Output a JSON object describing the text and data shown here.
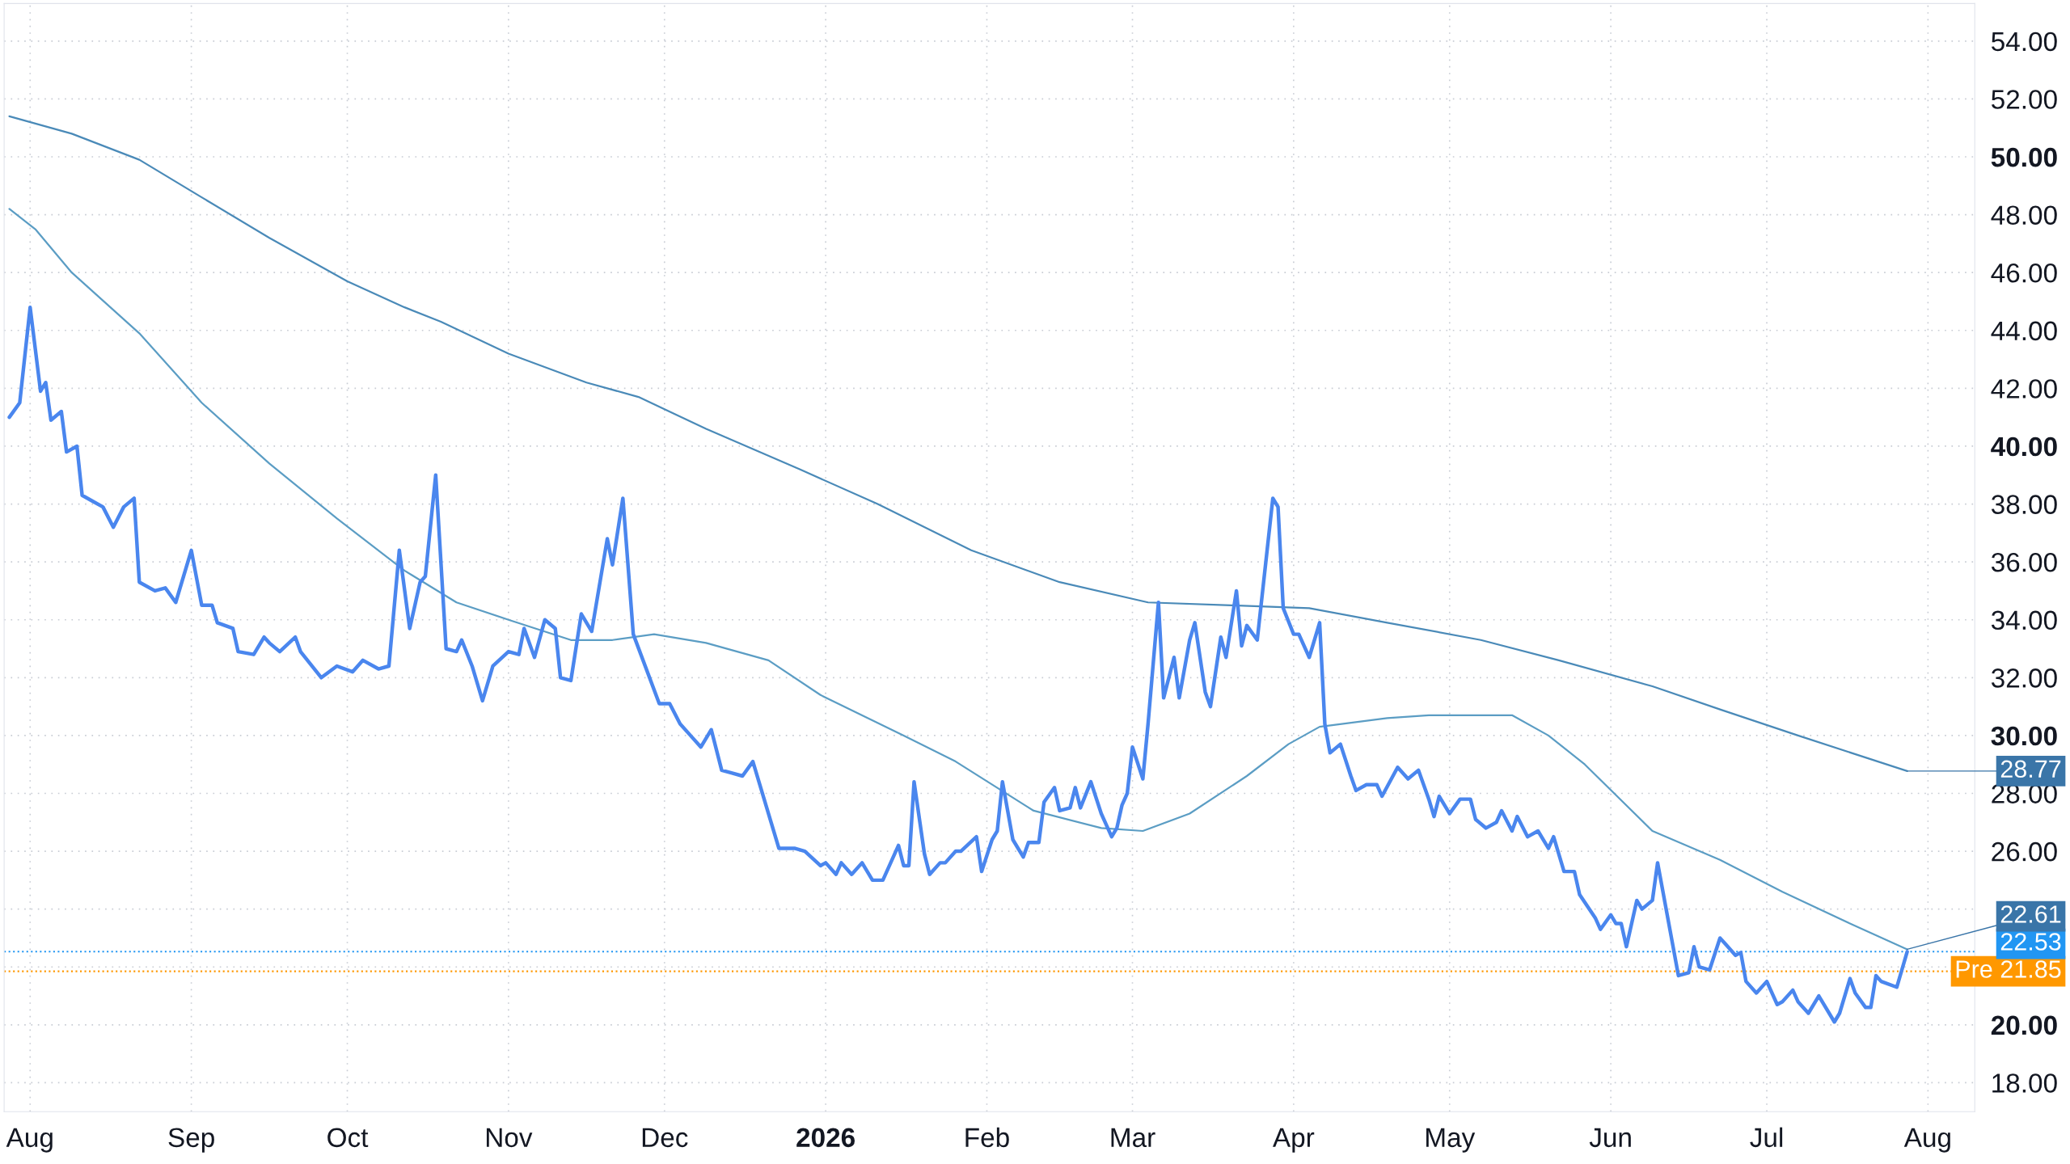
{
  "chart_data": {
    "type": "line",
    "xlim": [
      "2025-07-27",
      "2026-08-10"
    ],
    "ylim": [
      17.0,
      55.3
    ],
    "xticks": [
      {
        "value": "2025-08-01",
        "label": "Aug"
      },
      {
        "value": "2025-09-01",
        "label": "Sep"
      },
      {
        "value": "2025-10-01",
        "label": "Oct"
      },
      {
        "value": "2025-11-01",
        "label": "Nov"
      },
      {
        "value": "2025-12-01",
        "label": "Dec"
      },
      {
        "value": "2026-01-01",
        "label": "2026"
      },
      {
        "value": "2026-02-01",
        "label": "Feb"
      },
      {
        "value": "2026-03-01",
        "label": "Mar"
      },
      {
        "value": "2026-04-01",
        "label": "Apr"
      },
      {
        "value": "2026-05-01",
        "label": "May"
      },
      {
        "value": "2026-06-01",
        "label": "Jun"
      },
      {
        "value": "2026-07-01",
        "label": "Jul"
      },
      {
        "value": "2026-08-01",
        "label": "Aug"
      }
    ],
    "yticks": [
      {
        "value": 18,
        "label": "18.00"
      },
      {
        "value": 20,
        "label": "20.00"
      },
      {
        "value": 22,
        "label": null
      },
      {
        "value": 24,
        "label": null
      },
      {
        "value": 26,
        "label": "26.00"
      },
      {
        "value": 28,
        "label": "28.00"
      },
      {
        "value": 30,
        "label": "30.00"
      },
      {
        "value": 32,
        "label": "32.00"
      },
      {
        "value": 34,
        "label": "34.00"
      },
      {
        "value": 36,
        "label": "36.00"
      },
      {
        "value": 38,
        "label": "38.00"
      },
      {
        "value": 40,
        "label": "40.00"
      },
      {
        "value": 42,
        "label": "42.00"
      },
      {
        "value": 44,
        "label": "44.00"
      },
      {
        "value": 46,
        "label": "46.00"
      },
      {
        "value": 48,
        "label": "48.00"
      },
      {
        "value": 50,
        "label": "50.00"
      },
      {
        "value": 52,
        "label": "52.00"
      },
      {
        "value": 54,
        "label": "54.00"
      }
    ],
    "grid": true,
    "series": [
      {
        "color": "#4a86ee",
        "x": [
          "2025-07-28",
          "2025-07-30",
          "2025-08-01",
          "2025-08-03",
          "2025-08-04",
          "2025-08-05",
          "2025-08-07",
          "2025-08-08",
          "2025-08-10",
          "2025-08-11",
          "2025-08-13",
          "2025-08-15",
          "2025-08-17",
          "2025-08-19",
          "2025-08-21",
          "2025-08-22",
          "2025-08-25",
          "2025-08-27",
          "2025-08-29",
          "2025-09-01",
          "2025-09-03",
          "2025-09-05",
          "2025-09-06",
          "2025-09-09",
          "2025-09-10",
          "2025-09-13",
          "2025-09-15",
          "2025-09-16",
          "2025-09-18",
          "2025-09-21",
          "2025-09-22",
          "2025-09-26",
          "2025-09-29",
          "2025-10-02",
          "2025-10-04",
          "2025-10-07",
          "2025-10-09",
          "2025-10-11",
          "2025-10-13",
          "2025-10-15",
          "2025-10-16",
          "2025-10-18",
          "2025-10-20",
          "2025-10-22",
          "2025-10-23",
          "2025-10-25",
          "2025-10-27",
          "2025-10-29",
          "2025-11-01",
          "2025-11-03",
          "2025-11-04",
          "2025-11-06",
          "2025-11-08",
          "2025-11-10",
          "2025-11-11",
          "2025-11-13",
          "2025-11-15",
          "2025-11-17",
          "2025-11-20",
          "2025-11-21",
          "2025-11-23",
          "2025-11-25",
          "2025-11-30",
          "2025-12-02",
          "2025-12-04",
          "2025-12-06",
          "2025-12-08",
          "2025-12-10",
          "2025-12-12",
          "2025-12-14",
          "2025-12-16",
          "2025-12-18",
          "2025-12-23",
          "2025-12-26",
          "2025-12-28",
          "2025-12-31",
          "2026-01-01",
          "2026-01-03",
          "2026-01-04",
          "2026-01-06",
          "2026-01-08",
          "2026-01-10",
          "2026-01-12",
          "2026-01-15",
          "2026-01-16",
          "2026-01-17",
          "2026-01-18",
          "2026-01-20",
          "2026-01-21",
          "2026-01-23",
          "2026-01-24",
          "2026-01-26",
          "2026-01-27",
          "2026-01-30",
          "2026-01-31",
          "2026-02-02",
          "2026-02-03",
          "2026-02-04",
          "2026-02-06",
          "2026-02-08",
          "2026-02-09",
          "2026-02-11",
          "2026-02-12",
          "2026-02-14",
          "2026-02-15",
          "2026-02-17",
          "2026-02-18",
          "2026-02-19",
          "2026-02-21",
          "2026-02-23",
          "2026-02-25",
          "2026-02-26",
          "2026-02-27",
          "2026-02-28",
          "2026-03-01",
          "2026-03-03",
          "2026-03-04",
          "2026-03-06",
          "2026-03-07",
          "2026-03-09",
          "2026-03-10",
          "2026-03-12",
          "2026-03-13",
          "2026-03-15",
          "2026-03-16",
          "2026-03-18",
          "2026-03-19",
          "2026-03-21",
          "2026-03-22",
          "2026-03-23",
          "2026-03-25",
          "2026-03-28",
          "2026-03-29",
          "2026-03-30",
          "2026-04-01",
          "2026-04-02",
          "2026-04-04",
          "2026-04-06",
          "2026-04-07",
          "2026-04-08",
          "2026-04-10",
          "2026-04-12",
          "2026-04-13",
          "2026-04-15",
          "2026-04-17",
          "2026-04-18",
          "2026-04-21",
          "2026-04-23",
          "2026-04-25",
          "2026-04-27",
          "2026-04-28",
          "2026-04-29",
          "2026-05-01",
          "2026-05-03",
          "2026-05-05",
          "2026-05-06",
          "2026-05-08",
          "2026-05-10",
          "2026-05-11",
          "2026-05-13",
          "2026-05-14",
          "2026-05-16",
          "2026-05-18",
          "2026-05-20",
          "2026-05-21",
          "2026-05-23",
          "2026-05-25",
          "2026-05-26",
          "2026-05-29",
          "2026-05-30",
          "2026-06-01",
          "2026-06-02",
          "2026-06-03",
          "2026-06-04",
          "2026-06-06",
          "2026-06-07",
          "2026-06-09",
          "2026-06-10",
          "2026-06-14",
          "2026-06-16",
          "2026-06-17",
          "2026-06-18",
          "2026-06-20",
          "2026-06-22",
          "2026-06-23",
          "2026-06-25",
          "2026-06-26",
          "2026-06-27",
          "2026-06-29",
          "2026-07-01",
          "2026-07-03",
          "2026-07-04",
          "2026-07-06",
          "2026-07-07",
          "2026-07-09",
          "2026-07-11",
          "2026-07-14",
          "2026-07-15",
          "2026-07-17",
          "2026-07-18",
          "2026-07-20",
          "2026-07-21",
          "2026-07-22",
          "2026-07-23",
          "2026-07-26",
          "2026-07-28"
        ],
        "values": [
          41.0,
          41.5,
          44.8,
          41.9,
          42.2,
          40.9,
          41.2,
          39.8,
          40.0,
          38.3,
          38.1,
          37.9,
          37.2,
          37.9,
          38.2,
          35.3,
          35.0,
          35.1,
          34.6,
          36.4,
          34.5,
          34.5,
          33.9,
          33.7,
          32.9,
          32.8,
          33.4,
          33.2,
          32.9,
          33.4,
          32.9,
          32.0,
          32.4,
          32.2,
          32.6,
          32.3,
          32.4,
          36.4,
          33.7,
          35.3,
          35.5,
          39.0,
          33.0,
          32.9,
          33.3,
          32.4,
          31.2,
          32.4,
          32.9,
          32.8,
          33.7,
          32.7,
          34.0,
          33.7,
          32.0,
          31.9,
          34.2,
          33.6,
          36.8,
          35.9,
          38.2,
          33.5,
          31.1,
          31.1,
          30.4,
          30.0,
          29.6,
          30.2,
          28.8,
          28.7,
          28.6,
          29.1,
          26.1,
          26.1,
          26.0,
          25.5,
          25.6,
          25.2,
          25.6,
          25.2,
          25.6,
          25.0,
          25.0,
          26.2,
          25.5,
          25.5,
          28.4,
          25.9,
          25.2,
          25.6,
          25.6,
          26.0,
          26.0,
          26.5,
          25.3,
          26.4,
          26.7,
          28.4,
          26.4,
          25.8,
          26.3,
          26.3,
          27.7,
          28.2,
          27.4,
          27.5,
          28.2,
          27.5,
          28.4,
          27.3,
          26.5,
          26.8,
          27.6,
          28.0,
          29.6,
          28.5,
          30.4,
          34.6,
          31.3,
          32.7,
          31.3,
          33.3,
          33.9,
          31.5,
          31.0,
          33.4,
          32.7,
          35.0,
          33.1,
          33.8,
          33.3,
          38.2,
          37.9,
          34.4,
          33.5,
          33.5,
          32.7,
          33.9,
          30.4,
          29.4,
          29.7,
          28.6,
          28.1,
          28.3,
          28.3,
          27.9,
          28.9,
          28.5,
          28.8,
          27.8,
          27.2,
          27.9,
          27.3,
          27.8,
          27.8,
          27.1,
          26.8,
          27.0,
          27.4,
          26.7,
          27.2,
          26.5,
          26.7,
          26.1,
          26.5,
          25.3,
          25.3,
          24.5,
          23.7,
          23.3,
          23.8,
          23.5,
          23.5,
          22.7,
          24.3,
          24.0,
          24.3,
          25.6,
          21.7,
          21.8,
          22.7,
          22.0,
          21.9,
          23.0,
          22.8,
          22.4,
          22.5,
          21.5,
          21.1,
          21.5,
          20.7,
          20.8,
          21.2,
          20.8,
          20.4,
          21.0,
          20.1,
          20.4,
          21.6,
          21.1,
          20.6,
          20.6,
          21.7,
          21.5,
          21.3,
          22.53
        ]
      },
      {
        "color": "#4a8ab8",
        "x": [
          "2025-07-28",
          "2025-08-09",
          "2025-08-22",
          "2025-09-03",
          "2025-09-16",
          "2025-10-01",
          "2025-10-12",
          "2025-10-19",
          "2025-11-01",
          "2025-11-16",
          "2025-11-26",
          "2025-12-09",
          "2025-12-27",
          "2026-01-11",
          "2026-01-29",
          "2026-02-15",
          "2026-03-04",
          "2026-03-20",
          "2026-04-04",
          "2026-04-19",
          "2026-05-07",
          "2026-05-22",
          "2026-06-09",
          "2026-06-22",
          "2026-07-07",
          "2026-07-28"
        ],
        "values": [
          51.4,
          50.8,
          49.9,
          48.6,
          47.2,
          45.7,
          44.8,
          44.3,
          43.2,
          42.2,
          41.7,
          40.6,
          39.2,
          38.0,
          36.4,
          35.3,
          34.6,
          34.5,
          34.4,
          33.9,
          33.3,
          32.6,
          31.7,
          30.9,
          30.0,
          28.77
        ]
      },
      {
        "color": "#5b9dc4",
        "x": [
          "2025-07-28",
          "2025-08-02",
          "2025-08-09",
          "2025-08-22",
          "2025-09-03",
          "2025-09-16",
          "2025-09-29",
          "2025-10-12",
          "2025-10-22",
          "2025-11-01",
          "2025-11-13",
          "2025-11-21",
          "2025-11-29",
          "2025-12-09",
          "2025-12-21",
          "2025-12-31",
          "2026-01-16",
          "2026-01-26",
          "2026-02-10",
          "2026-02-23",
          "2026-03-03",
          "2026-03-12",
          "2026-03-23",
          "2026-03-31",
          "2026-04-06",
          "2026-04-19",
          "2026-04-27",
          "2026-05-13",
          "2026-05-20",
          "2026-05-27",
          "2026-06-09",
          "2026-06-22",
          "2026-07-04",
          "2026-07-17",
          "2026-07-28"
        ],
        "values": [
          48.2,
          47.5,
          46.0,
          43.9,
          41.5,
          39.4,
          37.5,
          35.7,
          34.6,
          34.0,
          33.3,
          33.3,
          33.5,
          33.2,
          32.6,
          31.4,
          30.0,
          29.1,
          27.4,
          26.8,
          26.7,
          27.3,
          28.6,
          29.7,
          30.3,
          30.6,
          30.7,
          30.7,
          30.0,
          29.0,
          26.7,
          25.7,
          24.6,
          23.5,
          22.61
        ]
      }
    ],
    "ref_lines": [
      {
        "axis": "y",
        "value": 22.53,
        "label": "22.53",
        "color": "#2196f3",
        "line_style": "dotted"
      },
      {
        "axis": "y",
        "value": 21.85,
        "label": "Pre 21.85",
        "color": "#ff9800",
        "line_style": "dotted"
      }
    ],
    "annotations": [
      {
        "text": "28.77",
        "x": "2026-07-28",
        "y": 28.77
      },
      {
        "text": "22.61",
        "x": "2026-07-28",
        "y": 22.61
      }
    ]
  }
}
